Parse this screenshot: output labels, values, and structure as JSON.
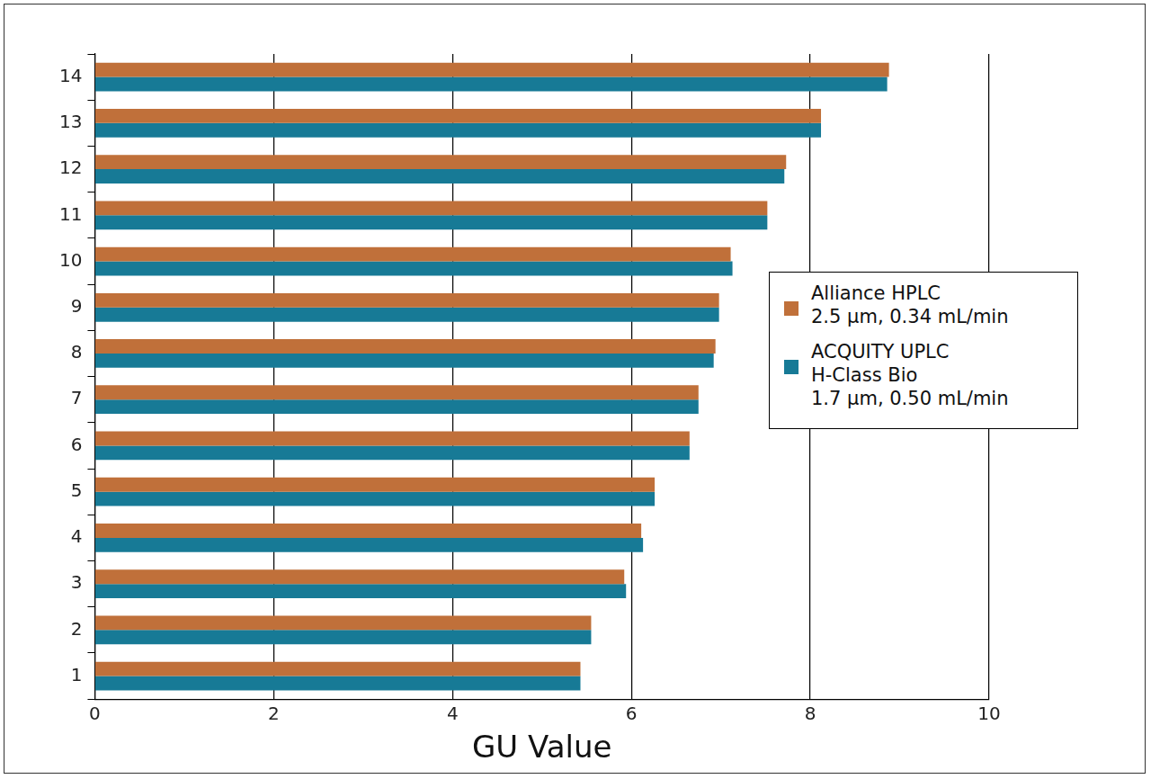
{
  "chart_data": {
    "type": "bar",
    "orientation": "horizontal",
    "x_label": "GU Value",
    "categories": [
      "1",
      "2",
      "3",
      "4",
      "5",
      "6",
      "7",
      "8",
      "9",
      "10",
      "11",
      "12",
      "13",
      "14"
    ],
    "series": [
      {
        "name": "Alliance HPLC\n2.5 µm, 0.34 mL/min",
        "color": "#c0703a",
        "values": [
          5.43,
          5.55,
          5.92,
          6.11,
          6.26,
          6.65,
          6.75,
          6.94,
          6.98,
          7.11,
          7.52,
          7.73,
          8.12,
          8.88
        ]
      },
      {
        "name": "ACQUITY UPLC\nH-Class Bio\n1.7 µm, 0.50 mL/min",
        "color": "#177a96",
        "values": [
          5.43,
          5.55,
          5.94,
          6.13,
          6.26,
          6.65,
          6.75,
          6.92,
          6.98,
          7.13,
          7.52,
          7.71,
          8.12,
          8.86
        ]
      }
    ],
    "xlim": [
      0,
      10
    ],
    "xticks": [
      0,
      2,
      4,
      6,
      8,
      10
    ],
    "grid": true,
    "legend": "right"
  }
}
